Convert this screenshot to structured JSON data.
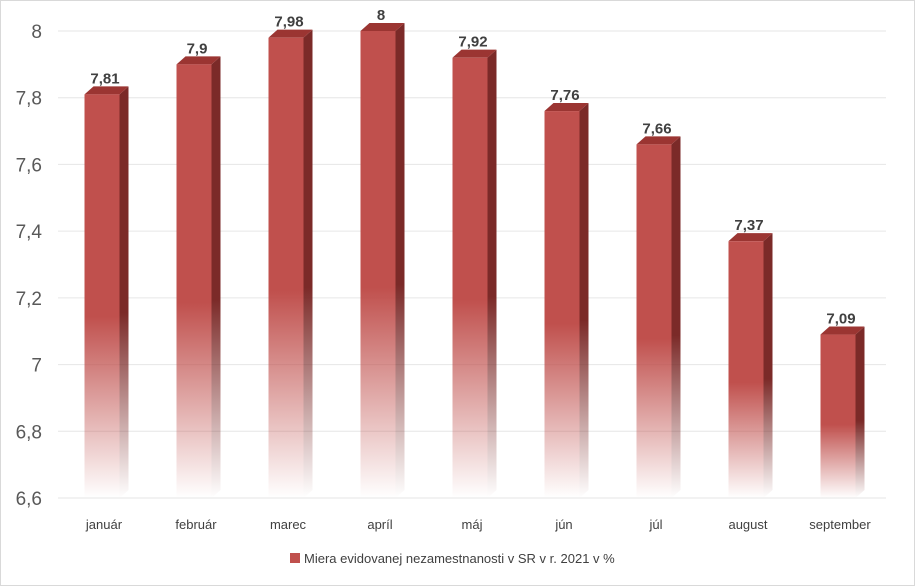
{
  "chart_data": {
    "type": "bar",
    "categories": [
      "január",
      "február",
      "marec",
      "apríl",
      "máj",
      "jún",
      "júl",
      "august",
      "september"
    ],
    "series": [
      {
        "name": "Miera evidovanej nezamestnanosti v SR v r. 2021  v %",
        "values": [
          7.81,
          7.9,
          7.98,
          8,
          7.92,
          7.76,
          7.66,
          7.37,
          7.09
        ]
      }
    ],
    "data_labels": [
      "7,81",
      "7,9",
      "7,98",
      "8",
      "7,92",
      "7,76",
      "7,66",
      "7,37",
      "7,09"
    ],
    "yticks": [
      "6,6",
      "6,8",
      "7",
      "7,2",
      "7,4",
      "7,6",
      "7,8",
      "8"
    ],
    "ylim": [
      6.6,
      8
    ],
    "grid": true,
    "legend_position": "bottom",
    "bar_style": "3d-column-gradient",
    "colors": {
      "bar_front": "#c0504d",
      "bar_side": "#7b2a28",
      "bar_top": "#9b3532",
      "grid": "#e6e6e6"
    }
  }
}
